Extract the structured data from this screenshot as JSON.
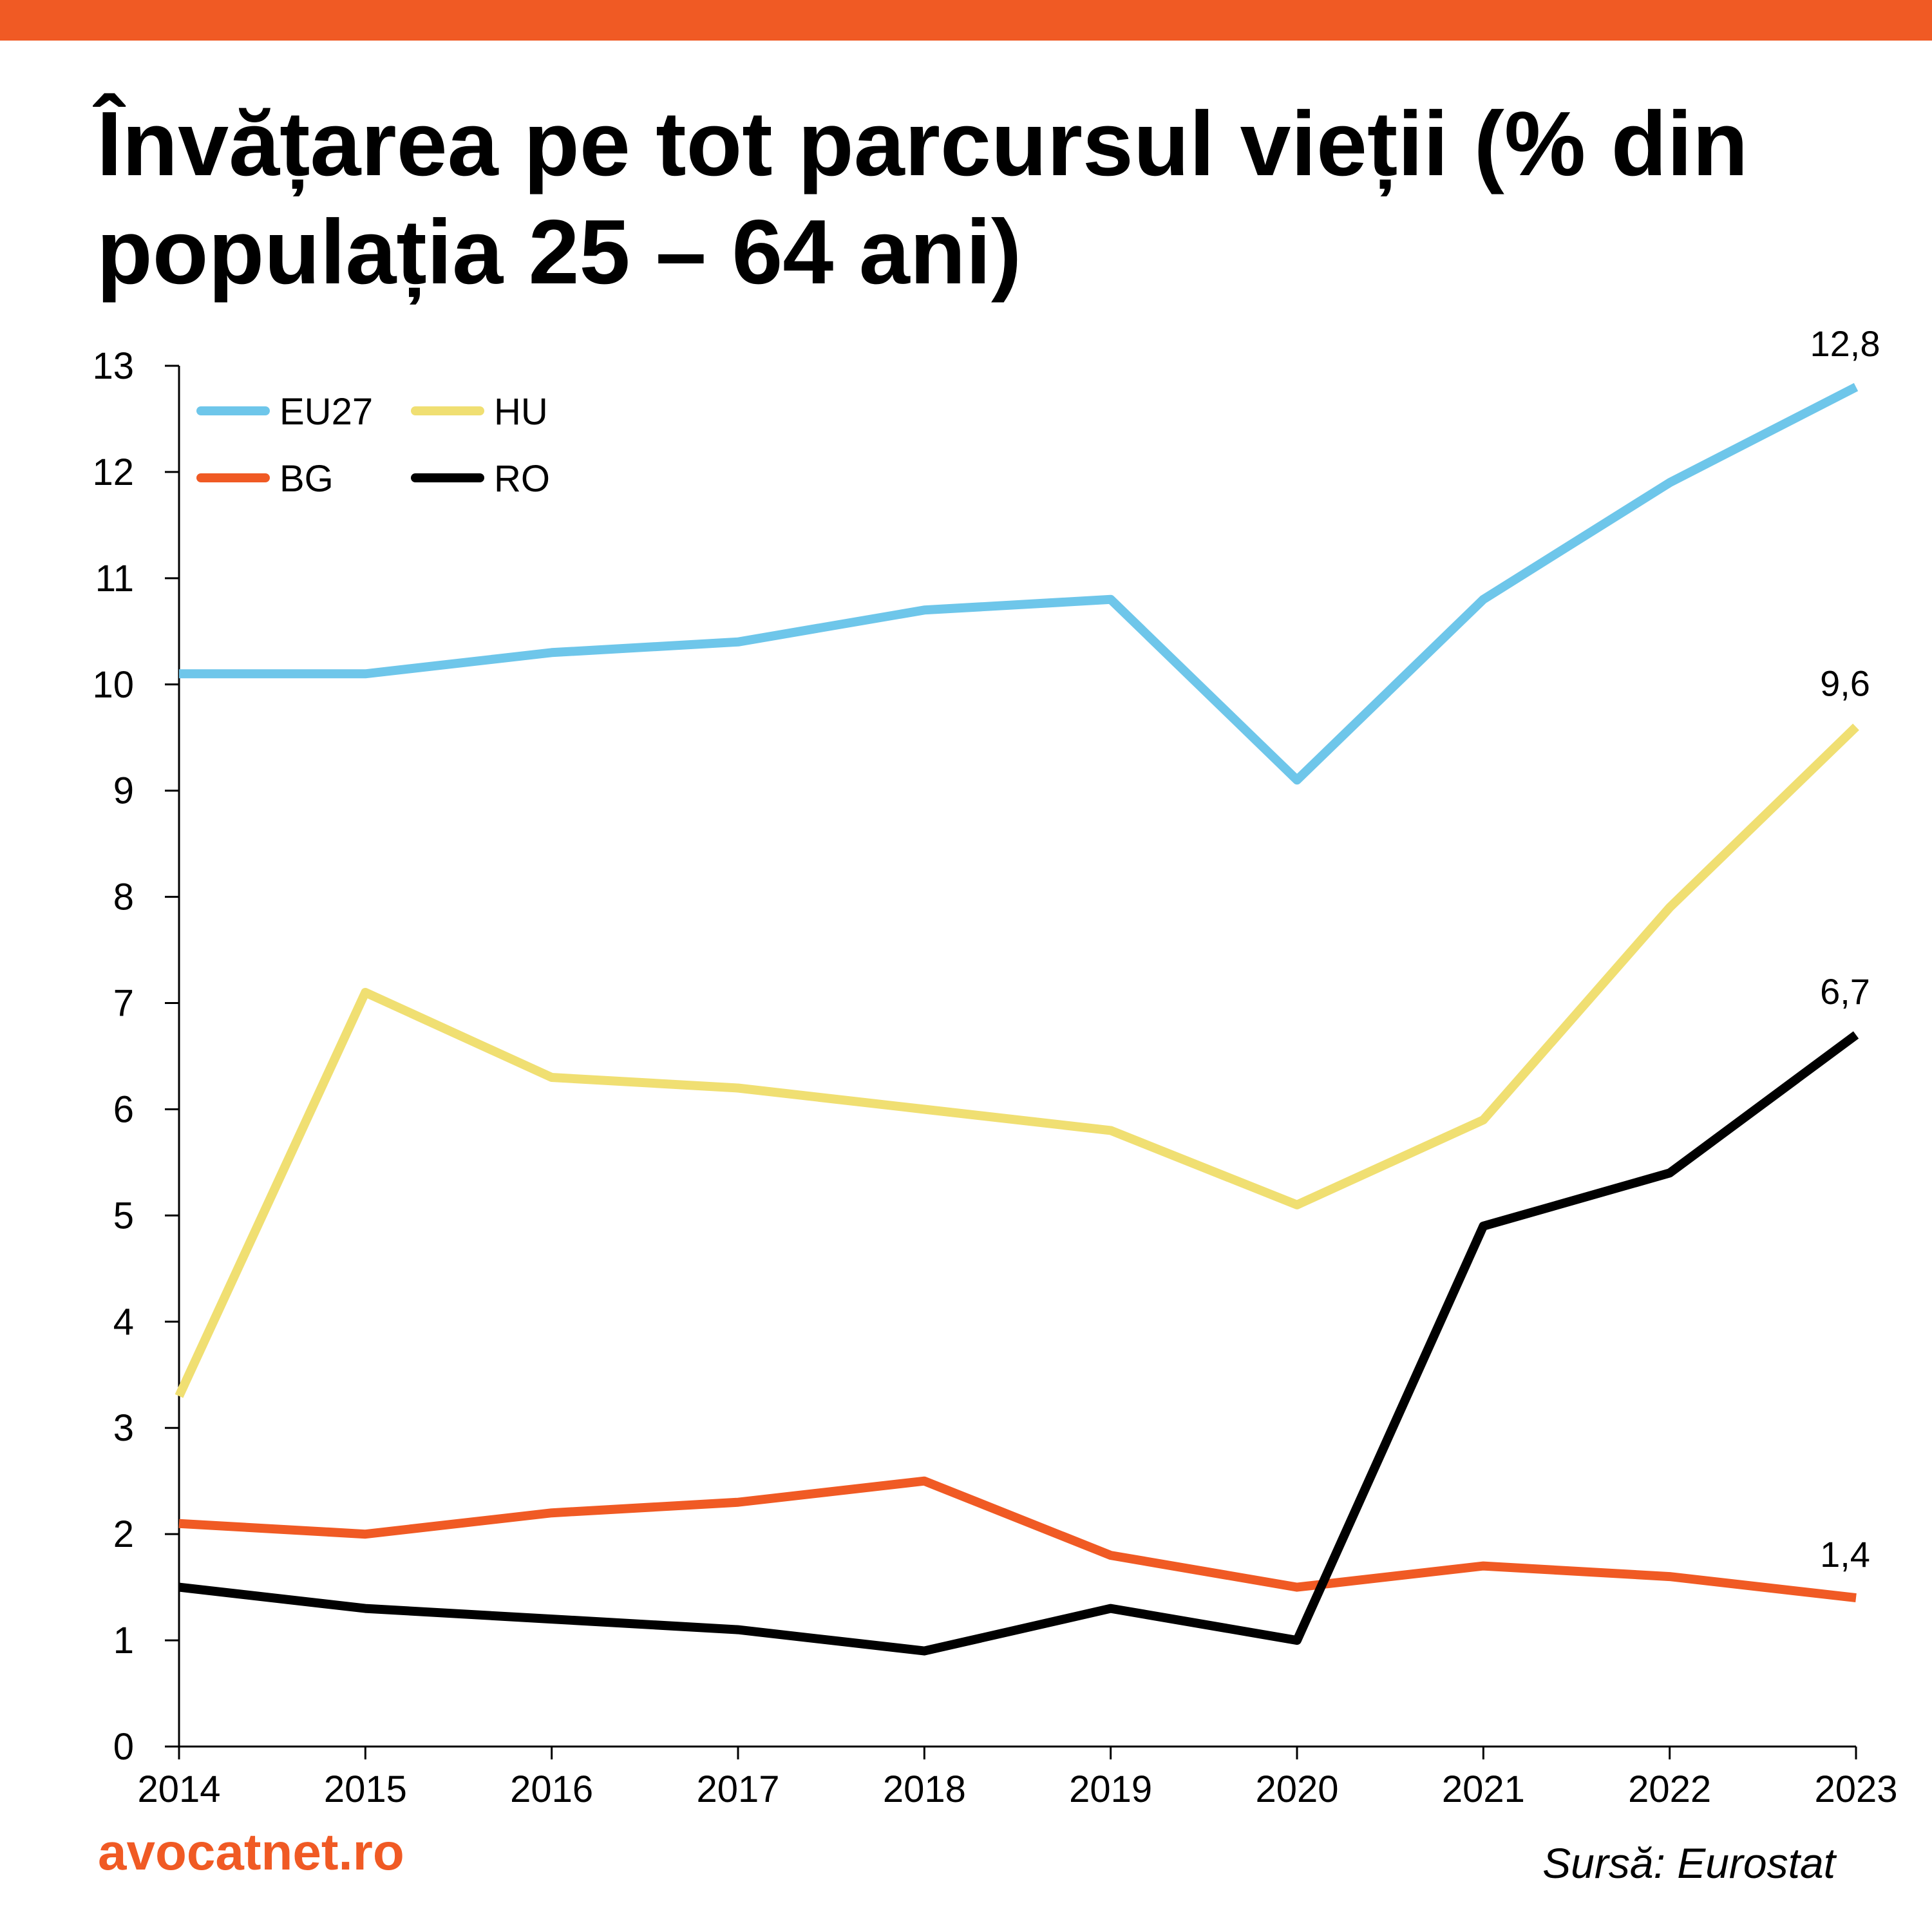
{
  "header": {
    "accent_color": "#f05a24"
  },
  "chart_data": {
    "type": "line",
    "title": "Învățarea pe tot parcursul vieții (% din populația 25 – 64 ani)",
    "xlabel": "",
    "ylabel": "",
    "x": [
      "2014",
      "2015",
      "2016",
      "2017",
      "2018",
      "2019",
      "2020",
      "2021",
      "2022",
      "2023"
    ],
    "ylim": [
      0,
      13
    ],
    "yticks": [
      "0",
      "1",
      "2",
      "3",
      "4",
      "5",
      "6",
      "7",
      "8",
      "9",
      "10",
      "11",
      "12",
      "13"
    ],
    "grid": false,
    "legend_position": "top-left",
    "series": [
      {
        "name": "EU27",
        "color": "#6ec6ea",
        "values": [
          10.1,
          10.1,
          10.3,
          10.4,
          10.7,
          10.8,
          9.1,
          10.8,
          11.9,
          12.8
        ],
        "end_label": "12,8"
      },
      {
        "name": "HU",
        "color": "#f0df72",
        "values": [
          3.3,
          7.1,
          6.3,
          6.2,
          6.0,
          5.8,
          5.1,
          5.9,
          7.9,
          9.6
        ],
        "end_label": "9,6"
      },
      {
        "name": "BG",
        "color": "#f05a24",
        "values": [
          2.1,
          2.0,
          2.2,
          2.3,
          2.5,
          1.8,
          1.5,
          1.7,
          1.6,
          1.4
        ],
        "end_label": "1,4"
      },
      {
        "name": "RO",
        "color": "#000000",
        "values": [
          1.5,
          1.3,
          1.2,
          1.1,
          0.9,
          1.3,
          1.0,
          4.9,
          5.4,
          6.7
        ],
        "end_label": "6,7"
      }
    ]
  },
  "footer": {
    "brand": "avocatnet.ro",
    "source": "Sursă: Eurostat"
  }
}
